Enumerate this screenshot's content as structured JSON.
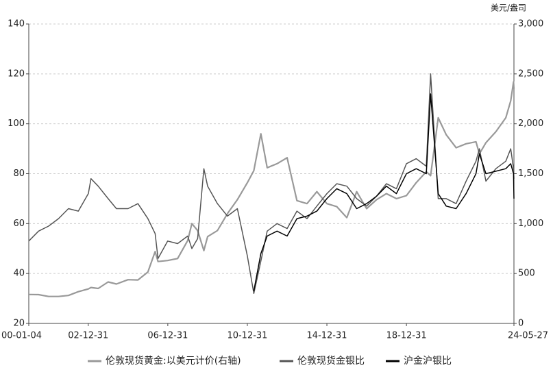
{
  "chart_data": {
    "type": "line",
    "y2_unit": "美元/盎司",
    "x": [
      "00-01-04",
      "00-07-01",
      "01-01-02",
      "01-07-02",
      "02-01-02",
      "02-07-01",
      "03-01-02",
      "03-02-20",
      "03-07-01",
      "03-12-31",
      "04-06-01",
      "04-12-31",
      "05-06-30",
      "05-12-30",
      "06-05-12",
      "06-07-03",
      "06-12-29",
      "07-06-29",
      "07-12-31",
      "08-03-17",
      "08-07-01",
      "08-10-24",
      "09-01-02",
      "09-06-30",
      "09-12-31",
      "10-06-30",
      "10-12-31",
      "11-04-28",
      "11-09-06",
      "11-12-30",
      "12-06-29",
      "12-12-31",
      "13-06-28",
      "13-12-31",
      "14-06-30",
      "14-12-31",
      "15-06-30",
      "15-12-31",
      "16-06-30",
      "16-12-30",
      "17-06-30",
      "17-12-29",
      "18-06-29",
      "18-12-31",
      "19-06-28",
      "19-12-31",
      "20-03-18",
      "20-08-06",
      "20-12-31",
      "21-06-30",
      "21-12-31",
      "22-06-30",
      "22-09-01",
      "22-12-30",
      "23-06-30",
      "23-12-29",
      "24-03-29",
      "24-05-20",
      "24-05-27"
    ],
    "xlim": [
      "00-01-04",
      "24-05-27"
    ],
    "xticks": [
      "00-01-04",
      "02-12-31",
      "06-12-31",
      "10-12-31",
      "14-12-31",
      "18-12-31",
      "24-05-27"
    ],
    "ylim": [
      20,
      140
    ],
    "yticks": [
      20,
      40,
      60,
      80,
      100,
      120,
      140
    ],
    "y2lim": [
      0,
      3000
    ],
    "y2ticks": [
      0,
      500,
      {
        "value": 1000,
        "label": "1,000"
      },
      {
        "value": 1500,
        "label": "1,500"
      },
      {
        "value": 2000,
        "label": "2,000"
      },
      {
        "value": 2500,
        "label": "2,500"
      },
      {
        "value": 3000,
        "label": "3,000"
      }
    ],
    "grid": true,
    "legend": "bottom",
    "series": [
      {
        "name": "伦敦现货黄金:以美元计价(右轴)",
        "color": "#999999",
        "axis": "y2",
        "values": [
          290,
          288,
          270,
          270,
          280,
          318,
          345,
          360,
          350,
          415,
          395,
          438,
          435,
          515,
          720,
          620,
          630,
          650,
          830,
          1000,
          930,
          730,
          870,
          930,
          1100,
          1240,
          1410,
          1530,
          1900,
          1560,
          1600,
          1660,
          1230,
          1200,
          1320,
          1200,
          1170,
          1060,
          1320,
          1150,
          1240,
          1300,
          1250,
          1280,
          1410,
          1520,
          1480,
          2060,
          1890,
          1760,
          1800,
          1820,
          1700,
          1810,
          1920,
          2060,
          2230,
          2420,
          2350
        ]
      },
      {
        "name": "伦敦现货金银比",
        "color": "#555555",
        "values": [
          53,
          57,
          59,
          62,
          66,
          65,
          72,
          78,
          75,
          70,
          66,
          66,
          68,
          62,
          56,
          46,
          53,
          52,
          55,
          50,
          54,
          82,
          75,
          68,
          63,
          66,
          47,
          32,
          45,
          57,
          60,
          58,
          65,
          62,
          67,
          72,
          76,
          75,
          70,
          67,
          71,
          76,
          74,
          84,
          86,
          83,
          120,
          70,
          70,
          68,
          77,
          85,
          90,
          77,
          82,
          85,
          90,
          82,
          78
        ]
      },
      {
        "name": "沪金沪银比",
        "color": "#000000",
        "values": [
          null,
          null,
          null,
          null,
          null,
          null,
          null,
          null,
          null,
          null,
          null,
          null,
          null,
          null,
          null,
          null,
          null,
          null,
          null,
          null,
          null,
          null,
          null,
          null,
          null,
          null,
          null,
          33,
          48,
          55,
          57,
          55,
          62,
          63,
          65,
          70,
          74,
          72,
          66,
          68,
          71,
          75,
          72,
          80,
          82,
          80,
          112,
          72,
          67,
          66,
          72,
          80,
          88,
          80,
          81,
          82,
          84,
          80,
          70
        ]
      }
    ]
  }
}
